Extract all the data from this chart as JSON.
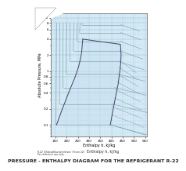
{
  "title": "PRESSURE - ENTHALPY DIAGRAM FOR THE REFRIGERANT R-22",
  "xlabel": "Enthalpy h, kJ/kg",
  "ylabel": "Absolute Pressure, MPa",
  "bg_color": "#ffffff",
  "plot_bg": "#d8eef8",
  "grid_color_major": "#9bbdd4",
  "grid_color_minor": "#b8d4e4",
  "ylim": [
    0.06,
    12.0
  ],
  "xlim": [
    130,
    560
  ],
  "y_ticks_major": [
    0.1,
    0.2,
    0.4,
    0.6,
    0.8,
    1.0,
    2.0,
    4.0,
    6.0,
    8.0,
    10.0
  ],
  "x_ticks_major": [
    150,
    200,
    250,
    300,
    350,
    400,
    450,
    500,
    550
  ],
  "sat_h_liq": [
    155,
    165,
    175,
    185,
    195,
    205,
    215,
    225,
    235,
    243,
    250,
    256,
    261,
    265,
    268,
    270,
    272
  ],
  "sat_p_liq": [
    0.1,
    0.13,
    0.17,
    0.22,
    0.28,
    0.36,
    0.46,
    0.58,
    0.73,
    0.9,
    1.1,
    1.35,
    1.65,
    2.0,
    2.5,
    3.2,
    4.0
  ],
  "sat_h_vap": [
    395,
    400,
    405,
    410,
    415,
    420,
    425,
    430,
    433,
    436,
    439,
    441,
    442,
    443,
    442,
    440,
    272
  ],
  "sat_p_vap": [
    0.1,
    0.13,
    0.17,
    0.22,
    0.28,
    0.36,
    0.46,
    0.58,
    0.73,
    0.9,
    1.1,
    1.35,
    1.65,
    2.0,
    2.5,
    3.2,
    4.0
  ],
  "dome_color": "#444466",
  "dome_fill": "#c8dff0",
  "isotherm_color": "#7799aa",
  "isentrope_color": "#8899bb",
  "isobar_color": "#99bbcc",
  "title_fontsize": 4.5,
  "label_fontsize": 3.5,
  "tick_fontsize": 3.0
}
